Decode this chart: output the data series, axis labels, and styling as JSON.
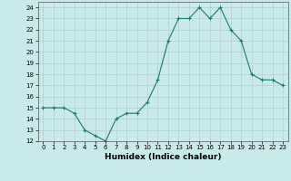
{
  "x": [
    0,
    1,
    2,
    3,
    4,
    5,
    6,
    7,
    8,
    9,
    10,
    11,
    12,
    13,
    14,
    15,
    16,
    17,
    18,
    19,
    20,
    21,
    22,
    23
  ],
  "y": [
    15,
    15,
    15,
    14.5,
    13,
    12.5,
    12,
    14,
    14.5,
    14.5,
    15.5,
    17.5,
    21,
    23,
    23,
    24,
    23,
    24,
    22,
    21,
    18,
    17.5,
    17.5,
    17
  ],
  "line_color": "#1a7a6a",
  "marker": "+",
  "marker_size": 3,
  "xlabel": "Humidex (Indice chaleur)",
  "xlim": [
    -0.5,
    23.5
  ],
  "ylim": [
    12,
    24.5
  ],
  "yticks": [
    12,
    13,
    14,
    15,
    16,
    17,
    18,
    19,
    20,
    21,
    22,
    23,
    24
  ],
  "xticks": [
    0,
    1,
    2,
    3,
    4,
    5,
    6,
    7,
    8,
    9,
    10,
    11,
    12,
    13,
    14,
    15,
    16,
    17,
    18,
    19,
    20,
    21,
    22,
    23
  ],
  "bg_color": "#c8eaea",
  "grid_color": "#afd0d0",
  "label_fontsize": 6.5,
  "tick_fontsize": 5
}
